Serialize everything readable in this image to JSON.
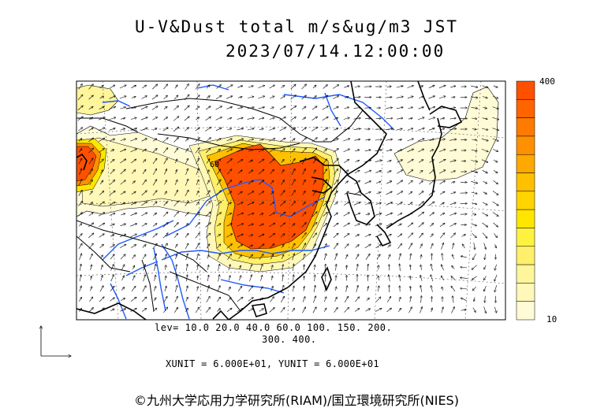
{
  "title": {
    "line1": "U-V&Dust total m/s&ug/m3 JST",
    "line2": "2023/07/14.12:00:00"
  },
  "legend": {
    "levels_line1": "lev= 10.0 20.0 40.0 60.0 100. 150. 200.",
    "levels_line2": "300. 400.",
    "levels": [
      10,
      20,
      40,
      60,
      100,
      150,
      200,
      300,
      400
    ],
    "colorbar_max_label": "400",
    "colorbar_min_label": "10",
    "colors": [
      "#fffbd6",
      "#fff8b8",
      "#fff59a",
      "#ffef6a",
      "#fff23f",
      "#ffe600",
      "#ffd400",
      "#ffc000",
      "#ffa800",
      "#ff9000",
      "#ff7a00",
      "#ff6400",
      "#ff5000"
    ],
    "contour_label": "60"
  },
  "units": {
    "text": "XUNIT = 6.000E+01, YUNIT = 6.000E+01"
  },
  "credit": {
    "text": "©九州大学応用力学研究所(RIAM)/国立環境研究所(NIES)"
  },
  "colors": {
    "coast": "#000000",
    "river": "#1e5aff",
    "dust_high": "#ff5000",
    "dust_low": "#fffbd6"
  }
}
